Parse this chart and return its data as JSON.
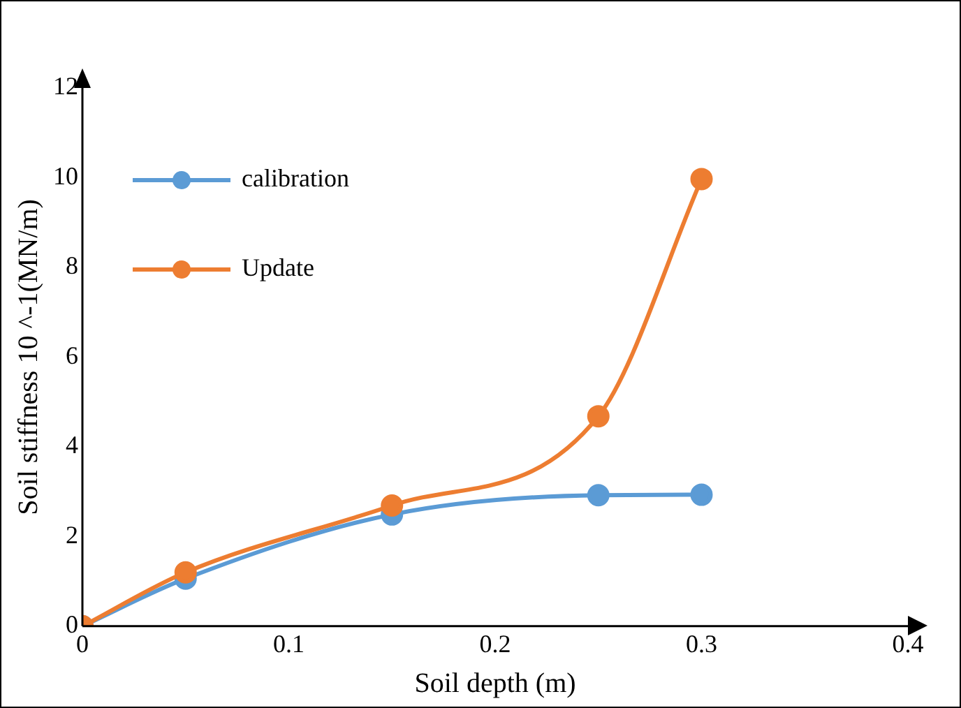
{
  "chart_data": {
    "type": "line",
    "xlabel": "Soil depth (m)",
    "ylabel": "Soil stiffness 10 ^-1(MN/m)",
    "xlim": [
      0,
      0.4
    ],
    "xticks": [
      0,
      0.1,
      0.2,
      0.3,
      0.4
    ],
    "ylim": [
      0,
      12
    ],
    "yticks": [
      0,
      2,
      4,
      6,
      8,
      10,
      12
    ],
    "grid": false,
    "legend": "top left",
    "marker": "circle",
    "line_style": "solid",
    "series": [
      {
        "name": "calibration",
        "color": "#5b9bd5",
        "x": [
          0,
          0.05,
          0.15,
          0.25,
          0.3
        ],
        "values": [
          0,
          1.06,
          2.49,
          2.92,
          2.93
        ]
      },
      {
        "name": "Update",
        "color": "#ed7d31",
        "x": [
          0,
          0.05,
          0.15,
          0.25,
          0.3
        ],
        "values": [
          0,
          1.2,
          2.69,
          4.68,
          9.97
        ]
      }
    ]
  }
}
